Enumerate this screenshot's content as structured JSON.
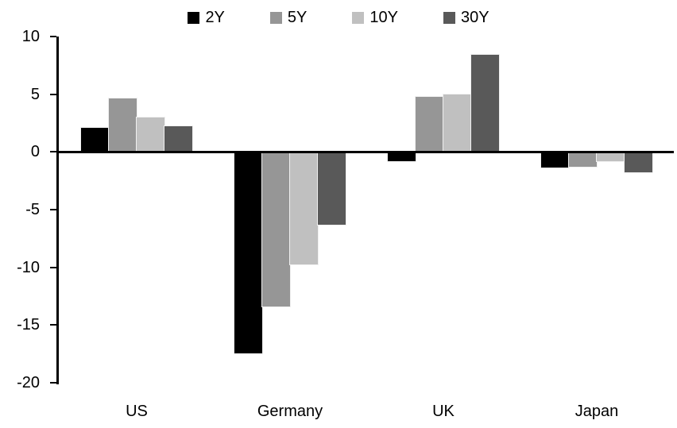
{
  "chart_data": {
    "type": "bar",
    "title": "",
    "categories": [
      "US",
      "Germany",
      "UK",
      "Japan"
    ],
    "series": [
      {
        "name": "2Y",
        "color": "#000000",
        "values": [
          2.1,
          -17.5,
          -0.8,
          -1.4
        ]
      },
      {
        "name": "5Y",
        "color": "#969696",
        "values": [
          4.6,
          -13.4,
          4.8,
          -1.3
        ]
      },
      {
        "name": "10Y",
        "color": "#c0c0c0",
        "values": [
          3.0,
          -9.8,
          5.0,
          -0.8
        ]
      },
      {
        "name": "30Y",
        "color": "#595959",
        "values": [
          2.2,
          -6.3,
          8.4,
          -1.8
        ]
      }
    ],
    "xlabel": "",
    "ylabel": "",
    "ylim": [
      -20,
      10
    ],
    "yticks": [
      10,
      5,
      0,
      -5,
      -10,
      -15,
      -20
    ],
    "grid": false,
    "legend_position": "top-center",
    "axis_color": "#000000",
    "background_color": "#ffffff"
  }
}
